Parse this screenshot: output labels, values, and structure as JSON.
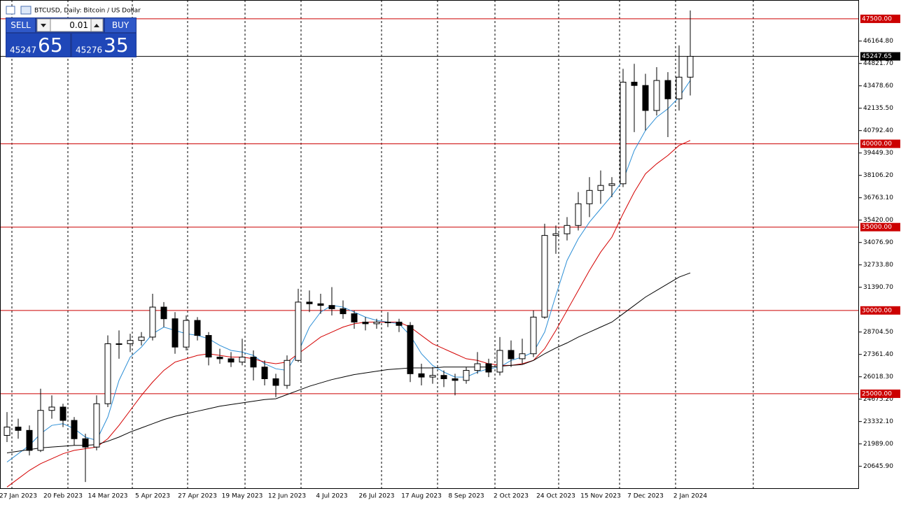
{
  "chart_data": {
    "type": "candlestick",
    "title": "BTCUSD, Daily: Bitcoin / US Dollar",
    "trade_panel": {
      "sell": "SELL",
      "buy": "BUY",
      "volume": "0.01",
      "bid_main": "45247",
      "bid_pips": "65",
      "ask_main": "45276",
      "ask_pips": "35"
    },
    "categories": [
      null,
      "27 Jan 2023",
      null,
      null,
      null,
      "20 Feb 2023",
      null,
      null,
      null,
      "14 Mar 2023",
      null,
      null,
      null,
      "5 Apr 2023",
      null,
      null,
      null,
      "27 Apr 2023",
      null,
      null,
      null,
      "19 May 2023",
      null,
      null,
      null,
      "12 Jun 2023",
      null,
      null,
      null,
      "4 Jul 2023",
      null,
      null,
      null,
      "26 Jul 2023",
      null,
      null,
      null,
      "17 Aug 2023",
      null,
      null,
      null,
      "8 Sep 2023",
      null,
      null,
      null,
      "2 Oct 2023",
      null,
      null,
      null,
      "24 Oct 2023",
      null,
      null,
      null,
      "15 Nov 2023",
      null,
      null,
      null,
      "7 Dec 2023",
      null,
      null,
      null,
      "2 Jan 2024"
    ],
    "open": [
      22500,
      23000,
      22800,
      21600,
      24000,
      24200,
      23400,
      22300,
      21800,
      24400,
      28000,
      28000,
      28200,
      28400,
      30200,
      29500,
      27800,
      29400,
      28500,
      27200,
      27100,
      26900,
      27200,
      26600,
      25900,
      25500,
      27000,
      30500,
      30400,
      30300,
      30100,
      29800,
      29300,
      29200,
      29300,
      29300,
      29100,
      26200,
      26000,
      26100,
      25900,
      25800,
      26400,
      26800,
      26300,
      27600,
      27100,
      27400,
      29600,
      34500,
      34600,
      35100,
      36400,
      37200,
      37500,
      37600,
      43700,
      43500,
      42000,
      43800,
      42700,
      44000
    ],
    "high": [
      23900,
      23500,
      23100,
      25300,
      24900,
      24400,
      23600,
      22600,
      24900,
      28500,
      28800,
      28600,
      28700,
      31000,
      30500,
      29900,
      29700,
      29600,
      28700,
      27700,
      27500,
      28300,
      27600,
      27000,
      26200,
      27300,
      31300,
      31200,
      31000,
      31400,
      30600,
      30000,
      29600,
      29500,
      29900,
      29500,
      29300,
      26800,
      26600,
      26400,
      26200,
      26600,
      27500,
      27100,
      28400,
      28200,
      28300,
      30000,
      35200,
      35100,
      35600,
      37100,
      38000,
      38400,
      38000,
      44500,
      44800,
      44200,
      44600,
      44300,
      45900,
      48000
    ],
    "low": [
      22100,
      22300,
      21300,
      21500,
      23500,
      23000,
      21900,
      19700,
      21600,
      24200,
      27100,
      27500,
      27900,
      28200,
      29000,
      27400,
      27600,
      28200,
      26700,
      26800,
      26600,
      26700,
      25800,
      25500,
      24800,
      25300,
      26900,
      29900,
      29800,
      29700,
      29500,
      28900,
      28800,
      28900,
      29000,
      28700,
      25700,
      25500,
      25600,
      25400,
      24900,
      25600,
      26200,
      26000,
      26100,
      26600,
      26800,
      27200,
      29500,
      33400,
      34200,
      34800,
      35600,
      36400,
      36800,
      37400,
      40700,
      40800,
      41700,
      40400,
      42000,
      42900
    ],
    "close": [
      23000,
      22800,
      21600,
      24000,
      24200,
      23400,
      22300,
      21800,
      24400,
      28000,
      28000,
      28200,
      28400,
      30200,
      29500,
      27800,
      29400,
      28500,
      27200,
      27100,
      26900,
      27200,
      26600,
      25900,
      25500,
      27000,
      30500,
      30400,
      30300,
      30100,
      29800,
      29300,
      29200,
      29300,
      29300,
      29100,
      26200,
      26000,
      26100,
      25900,
      25800,
      26400,
      26800,
      26300,
      27600,
      27100,
      27400,
      29600,
      34500,
      34600,
      35100,
      36400,
      37200,
      37500,
      37600,
      43700,
      43500,
      42000,
      43800,
      42700,
      44000,
      45250
    ],
    "series": [
      {
        "color": "#2d8fd6",
        "values": [
          20900,
          21400,
          21900,
          22600,
          23100,
          23200,
          22900,
          22400,
          22200,
          23600,
          25800,
          27200,
          27800,
          28600,
          29000,
          28800,
          28600,
          28500,
          28300,
          27900,
          27600,
          27500,
          27300,
          26800,
          26500,
          26400,
          27500,
          29000,
          29900,
          30300,
          30200,
          29900,
          29600,
          29400,
          29300,
          29200,
          28500,
          27400,
          26700,
          26300,
          26000,
          26000,
          26300,
          26500,
          26600,
          27000,
          27200,
          27500,
          28700,
          30900,
          33000,
          34300,
          35300,
          36100,
          36900,
          37800,
          39600,
          40800,
          41600,
          42100,
          42800,
          43800
        ]
      },
      {
        "color": "#d40000",
        "values": [
          19400,
          19900,
          20400,
          20800,
          21100,
          21400,
          21600,
          21700,
          21800,
          22300,
          23100,
          24000,
          24900,
          25700,
          26400,
          26900,
          27100,
          27300,
          27400,
          27300,
          27200,
          27200,
          27100,
          26900,
          26800,
          26900,
          27400,
          27900,
          28400,
          28700,
          29000,
          29200,
          29300,
          29300,
          29300,
          29300,
          29000,
          28500,
          28000,
          27700,
          27400,
          27100,
          27000,
          26800,
          26700,
          26700,
          26800,
          27000,
          27700,
          28800,
          30000,
          31200,
          32400,
          33500,
          34400,
          35800,
          37100,
          38200,
          38800,
          39300,
          39900,
          40200
        ]
      },
      {
        "color": "#000000",
        "values": [
          21450,
          21550,
          21650,
          21750,
          21800,
          21850,
          21900,
          21900,
          21950,
          22150,
          22400,
          22700,
          22950,
          23200,
          23450,
          23650,
          23800,
          23950,
          24100,
          24250,
          24350,
          24450,
          24550,
          24650,
          24700,
          24950,
          25200,
          25450,
          25650,
          25850,
          26000,
          26150,
          26250,
          26350,
          26450,
          26500,
          26550,
          26550,
          26550,
          26600,
          26600,
          26600,
          26600,
          26600,
          26650,
          26700,
          26750,
          27000,
          27400,
          27750,
          28050,
          28400,
          28700,
          29000,
          29300,
          29800,
          30300,
          30800,
          31200,
          31600,
          32000,
          32250
        ]
      }
    ],
    "ylim": [
      19330,
      48630
    ],
    "yticks": [
      {
        "value": 46164.8,
        "label": "46164.80"
      },
      {
        "value": 44821.7,
        "label": "44821.70"
      },
      {
        "value": 43478.6,
        "label": "43478.60"
      },
      {
        "value": 42135.5,
        "label": "42135.50"
      },
      {
        "value": 40792.4,
        "label": "40792.40"
      },
      {
        "value": 39449.3,
        "label": "39449.30"
      },
      {
        "value": 38106.2,
        "label": "38106.20"
      },
      {
        "value": 36763.1,
        "label": "36763.10"
      },
      {
        "value": 35420,
        "label": "35420.00"
      },
      {
        "value": 34076.9,
        "label": "34076.90"
      },
      {
        "value": 32733.8,
        "label": "32733.80"
      },
      {
        "value": 31390.7,
        "label": "31390.70"
      },
      {
        "value": 28704.5,
        "label": "28704.50"
      },
      {
        "value": 27361.4,
        "label": "27361.40"
      },
      {
        "value": 26018.3,
        "label": "26018.30"
      },
      {
        "value": 24675.2,
        "label": "24675.20"
      },
      {
        "value": 23332.1,
        "label": "23332.10"
      },
      {
        "value": 21989,
        "label": "21989.00"
      },
      {
        "value": 20645.9,
        "label": "20645.90"
      }
    ],
    "levels": [
      {
        "value": 47500,
        "label": "47500.00",
        "color": "#cc0000"
      },
      {
        "value": 40000,
        "label": "40000.00",
        "color": "#cc0000"
      },
      {
        "value": 35000,
        "label": "35000.00",
        "color": "#cc0000"
      },
      {
        "value": 30000,
        "label": "30000.00",
        "color": "#cc0000"
      },
      {
        "value": 25000,
        "label": "25000.00",
        "color": "#cc0000"
      }
    ],
    "current_price": {
      "value": 45247.65,
      "color": "#000000"
    }
  }
}
